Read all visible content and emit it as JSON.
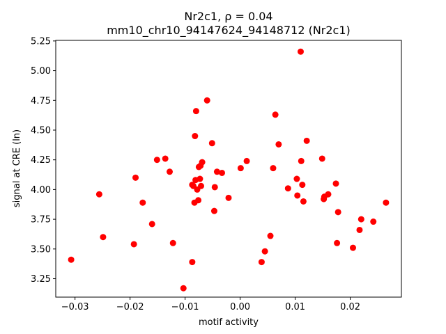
{
  "chart_data": {
    "type": "scatter",
    "title": "Nr2c1, ρ = 0.04",
    "subtitle": "mm10_chr10_94147624_94148712 (Nr2c1)",
    "xlabel": "motif activity",
    "ylabel": "signal at CRE (ln)",
    "xlim": [
      -0.0335,
      0.0293
    ],
    "ylim": [
      3.095,
      5.255
    ],
    "xticks": [
      -0.03,
      -0.02,
      -0.01,
      0.0,
      0.01,
      0.02
    ],
    "xtick_labels": [
      "−0.03",
      "−0.02",
      "−0.01",
      "0.00",
      "0.01",
      "0.02"
    ],
    "yticks": [
      3.25,
      3.5,
      3.75,
      4.0,
      4.25,
      4.5,
      4.75,
      5.0,
      5.25
    ],
    "ytick_labels": [
      "3.25",
      "3.50",
      "3.75",
      "4.00",
      "4.25",
      "4.50",
      "4.75",
      "5.00",
      "5.25"
    ],
    "grid": false,
    "marker_color": "#ff0000",
    "points": [
      [
        -0.0307,
        3.41
      ],
      [
        -0.0256,
        3.96
      ],
      [
        -0.0249,
        3.6
      ],
      [
        -0.0193,
        3.54
      ],
      [
        -0.019,
        4.1
      ],
      [
        -0.0177,
        3.89
      ],
      [
        -0.016,
        3.71
      ],
      [
        -0.0151,
        4.25
      ],
      [
        -0.0136,
        4.26
      ],
      [
        -0.0128,
        4.15
      ],
      [
        -0.0122,
        3.55
      ],
      [
        -0.0103,
        3.17
      ],
      [
        -0.0087,
        3.39
      ],
      [
        -0.0087,
        4.04
      ],
      [
        -0.0085,
        4.03
      ],
      [
        -0.0083,
        3.89
      ],
      [
        -0.0082,
        4.45
      ],
      [
        -0.0081,
        4.08
      ],
      [
        -0.008,
        4.66
      ],
      [
        -0.0078,
        4.0
      ],
      [
        -0.0076,
        3.91
      ],
      [
        -0.0075,
        4.19
      ],
      [
        -0.0073,
        4.09
      ],
      [
        -0.0072,
        4.2
      ],
      [
        -0.0071,
        4.03
      ],
      [
        -0.0069,
        4.23
      ],
      [
        -0.006,
        4.75
      ],
      [
        -0.0051,
        4.39
      ],
      [
        -0.0047,
        3.82
      ],
      [
        -0.0046,
        4.02
      ],
      [
        -0.0042,
        4.15
      ],
      [
        -0.0033,
        4.14
      ],
      [
        -0.0021,
        3.93
      ],
      [
        0.0001,
        4.18
      ],
      [
        0.0012,
        4.24
      ],
      [
        0.0039,
        3.39
      ],
      [
        0.0045,
        3.48
      ],
      [
        0.0055,
        3.61
      ],
      [
        0.006,
        4.18
      ],
      [
        0.0064,
        4.63
      ],
      [
        0.007,
        4.38
      ],
      [
        0.0087,
        4.01
      ],
      [
        0.0103,
        4.09
      ],
      [
        0.0104,
        3.95
      ],
      [
        0.011,
        5.16
      ],
      [
        0.0111,
        4.24
      ],
      [
        0.0113,
        4.04
      ],
      [
        0.0115,
        3.9
      ],
      [
        0.0121,
        4.41
      ],
      [
        0.0149,
        4.26
      ],
      [
        0.0152,
        3.92
      ],
      [
        0.0153,
        3.94
      ],
      [
        0.016,
        3.96
      ],
      [
        0.0174,
        4.05
      ],
      [
        0.0176,
        3.55
      ],
      [
        0.0178,
        3.81
      ],
      [
        0.0205,
        3.51
      ],
      [
        0.0217,
        3.66
      ],
      [
        0.022,
        3.75
      ],
      [
        0.0242,
        3.73
      ],
      [
        0.0265,
        3.89
      ]
    ]
  }
}
